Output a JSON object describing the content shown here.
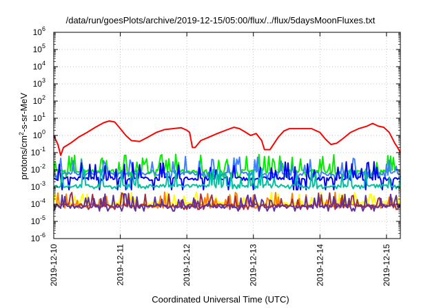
{
  "title": "/data/run/goesPlots/archive/2019-12-15/05:00/flux/../flux/5daysMoonFluxes.txt",
  "xlabel": "Coordinated Universal Time (UTC)",
  "ylabel_pre": "protons/cm",
  "ylabel_sup": "2",
  "ylabel_post": "-s-sr-MeV",
  "chart_data": {
    "type": "line",
    "title": "/data/run/goesPlots/archive/2019-12-15/05:00/flux/../flux/5daysMoonFluxes.txt",
    "xlabel": "Coordinated Universal Time (UTC)",
    "ylabel": "protons/cm2-s-sr-MeV",
    "yscale": "log",
    "ylim": [
      1e-06,
      1000000.0
    ],
    "xlim": [
      "2019-12-10T00:00",
      "2019-12-15T05:00"
    ],
    "yticks": [
      {
        "base": "10",
        "exp": "-6"
      },
      {
        "base": "10",
        "exp": "-5"
      },
      {
        "base": "10",
        "exp": "-4"
      },
      {
        "base": "10",
        "exp": "-3"
      },
      {
        "base": "10",
        "exp": "-2"
      },
      {
        "base": "10",
        "exp": "-1"
      },
      {
        "base": "10",
        "exp": "0"
      },
      {
        "base": "10",
        "exp": "1"
      },
      {
        "base": "10",
        "exp": "2"
      },
      {
        "base": "10",
        "exp": "3"
      },
      {
        "base": "10",
        "exp": "4"
      },
      {
        "base": "10",
        "exp": "5"
      },
      {
        "base": "10",
        "exp": "6"
      }
    ],
    "xticks": [
      "2019-12-10",
      "2019-12-11",
      "2019-12-12",
      "2019-12-13",
      "2019-12-14",
      "2019-12-15"
    ],
    "grid": true,
    "series": [
      {
        "color": "#ff0000",
        "points": [
          [
            "2019-12-10T00:00",
            1.0
          ],
          [
            "2019-12-10T01:30",
            0.3
          ],
          [
            "2019-12-10T02:30",
            0.07
          ],
          [
            "2019-12-10T03:30",
            0.2
          ],
          [
            "2019-12-10T06:00",
            0.35
          ],
          [
            "2019-12-10T09:00",
            0.8
          ],
          [
            "2019-12-10T12:00",
            1.5
          ],
          [
            "2019-12-10T15:00",
            3.0
          ],
          [
            "2019-12-10T18:00",
            5.5
          ],
          [
            "2019-12-10T20:00",
            7.0
          ],
          [
            "2019-12-10T22:00",
            6.0
          ],
          [
            "2019-12-11T00:00",
            2.5
          ],
          [
            "2019-12-11T02:00",
            1.0
          ],
          [
            "2019-12-11T04:00",
            0.5
          ],
          [
            "2019-12-11T07:00",
            0.45
          ],
          [
            "2019-12-11T10:00",
            0.8
          ],
          [
            "2019-12-11T13:00",
            1.5
          ],
          [
            "2019-12-11T16:00",
            2.2
          ],
          [
            "2019-12-11T19:00",
            2.5
          ],
          [
            "2019-12-11T22:00",
            2.8
          ],
          [
            "2019-12-12T00:00",
            2.0
          ],
          [
            "2019-12-12T01:00",
            1.5
          ],
          [
            "2019-12-12T02:00",
            0.2
          ],
          [
            "2019-12-12T03:00",
            0.2
          ],
          [
            "2019-12-12T05:00",
            0.5
          ],
          [
            "2019-12-12T08:00",
            0.8
          ],
          [
            "2019-12-12T11:00",
            1.3
          ],
          [
            "2019-12-12T14:00",
            2.0
          ],
          [
            "2019-12-12T17:00",
            3.0
          ],
          [
            "2019-12-12T19:00",
            2.5
          ],
          [
            "2019-12-12T21:00",
            1.6
          ],
          [
            "2019-12-12T23:00",
            1.0
          ],
          [
            "2019-12-13T01:00",
            1.3
          ],
          [
            "2019-12-13T03:00",
            0.5
          ],
          [
            "2019-12-13T04:00",
            0.15
          ],
          [
            "2019-12-13T06:00",
            0.15
          ],
          [
            "2019-12-13T09:00",
            0.8
          ],
          [
            "2019-12-13T11:00",
            1.8
          ],
          [
            "2019-12-13T13:00",
            2.5
          ],
          [
            "2019-12-13T16:00",
            2.5
          ],
          [
            "2019-12-13T19:00",
            2.5
          ],
          [
            "2019-12-13T21:00",
            2.5
          ],
          [
            "2019-12-14T00:00",
            1.5
          ],
          [
            "2019-12-14T02:00",
            0.6
          ],
          [
            "2019-12-14T04:00",
            0.3
          ],
          [
            "2019-12-14T06:00",
            0.35
          ],
          [
            "2019-12-14T08:00",
            0.6
          ],
          [
            "2019-12-14T11:00",
            1.5
          ],
          [
            "2019-12-14T14:00",
            2.5
          ],
          [
            "2019-12-14T17:00",
            3.5
          ],
          [
            "2019-12-14T19:00",
            5.0
          ],
          [
            "2019-12-14T21:00",
            3.5
          ],
          [
            "2019-12-14T23:00",
            3.0
          ],
          [
            "2019-12-15T01:00",
            1.5
          ],
          [
            "2019-12-15T03:00",
            0.35
          ],
          [
            "2019-12-15T04:00",
            0.2
          ],
          [
            "2019-12-15T05:00",
            0.1
          ]
        ]
      },
      {
        "color": "#00ee00",
        "base": 0.008,
        "high": 0.08,
        "low": 0.004
      },
      {
        "color": "#4080ff",
        "base": 0.006,
        "high": 0.06,
        "low": 0.003
      },
      {
        "color": "#0000ff",
        "base": 0.003,
        "high": 0.03,
        "low": 0.0007
      },
      {
        "color": "#00c0a0",
        "base": 0.0011,
        "high": 0.012,
        "low": 0.0008
      },
      {
        "color": "#ffff00",
        "base": 0.00011,
        "high": 0.0005,
        "low": 8e-05
      },
      {
        "color": "#ff8000",
        "base": 8e-05,
        "high": 0.0005,
        "low": 6e-05
      },
      {
        "color": "#a03040",
        "base": 8e-05,
        "high": 0.0005,
        "low": 5e-05
      },
      {
        "color": "#6030a0",
        "base": 7e-05,
        "high": 0.0004,
        "low": 4e-05
      }
    ]
  }
}
